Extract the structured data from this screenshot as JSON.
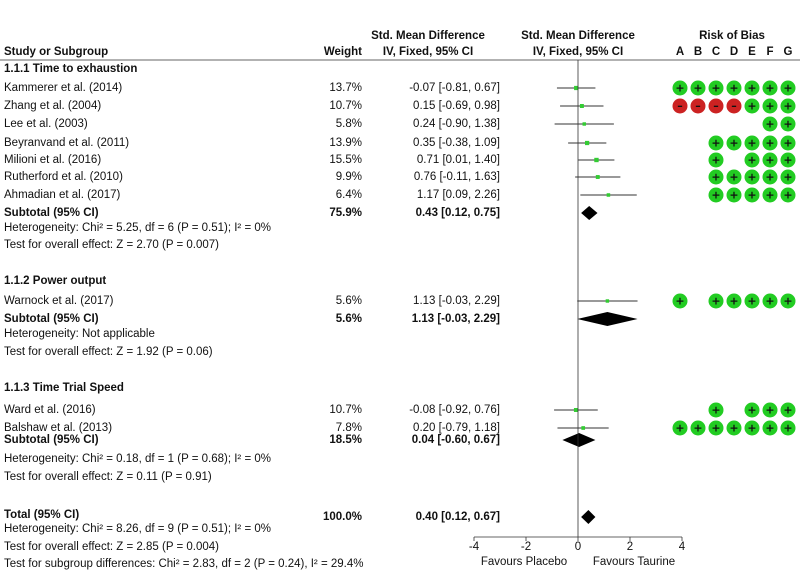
{
  "header": {
    "col_study": "Study or Subgroup",
    "col_weight": "Weight",
    "col_smd_top": "Std. Mean Difference",
    "col_smd_bottom": "IV, Fixed, 95% CI",
    "col_plot_top": "Std. Mean Difference",
    "col_plot_bottom": "IV, Fixed, 95% CI",
    "col_rob_top": "Risk of Bias",
    "rob_letters": [
      "A",
      "B",
      "C",
      "D",
      "E",
      "F",
      "G"
    ]
  },
  "groups": [
    {
      "title": "1.1.1 Time to exhaustion",
      "studies": [
        {
          "name": "Kammerer et al. (2014)",
          "weight": "13.7%",
          "ci_text": "-0.07 [-0.81, 0.67]",
          "est": -0.07,
          "lo": -0.81,
          "hi": 0.67,
          "rob": [
            "+",
            "+",
            "+",
            "+",
            "+",
            "+",
            "+"
          ]
        },
        {
          "name": "Zhang et al. (2004)",
          "weight": "10.7%",
          "ci_text": "0.15 [-0.69, 0.98]",
          "est": 0.15,
          "lo": -0.69,
          "hi": 0.98,
          "rob": [
            "-",
            "-",
            "-",
            "-",
            "+",
            "+",
            "+"
          ]
        },
        {
          "name": "Lee et al. (2003)",
          "weight": "5.8%",
          "ci_text": "0.24 [-0.90, 1.38]",
          "est": 0.24,
          "lo": -0.9,
          "hi": 1.38,
          "rob": [
            "",
            "",
            "",
            "",
            "",
            "+",
            "+"
          ]
        },
        {
          "name": "Beyranvand et al. (2011)",
          "weight": "13.9%",
          "ci_text": "0.35 [-0.38, 1.09]",
          "est": 0.35,
          "lo": -0.38,
          "hi": 1.09,
          "rob": [
            "",
            "",
            "+",
            "+",
            "+",
            "+",
            "+"
          ]
        },
        {
          "name": "Milioni et al. (2016)",
          "weight": "15.5%",
          "ci_text": "0.71 [0.01, 1.40]",
          "est": 0.71,
          "lo": 0.01,
          "hi": 1.4,
          "rob": [
            "",
            "",
            "+",
            "",
            "+",
            "+",
            "+"
          ]
        },
        {
          "name": "Rutherford et al. (2010)",
          "weight": "9.9%",
          "ci_text": "0.76 [-0.11, 1.63]",
          "est": 0.76,
          "lo": -0.11,
          "hi": 1.63,
          "rob": [
            "",
            "",
            "+",
            "+",
            "+",
            "+",
            "+"
          ]
        },
        {
          "name": "Ahmadian et al. (2017)",
          "weight": "6.4%",
          "ci_text": "1.17 [0.09, 2.26]",
          "est": 1.17,
          "lo": 0.09,
          "hi": 2.26,
          "rob": [
            "",
            "",
            "+",
            "+",
            "+",
            "+",
            "+"
          ]
        }
      ],
      "subtotal": {
        "label": "Subtotal (95% CI)",
        "weight": "75.9%",
        "ci_text": "0.43 [0.12, 0.75]",
        "est": 0.43,
        "lo": 0.12,
        "hi": 0.75
      },
      "heterogeneity": "Heterogeneity: Chi² = 5.25, df = 6 (P = 0.51); I² = 0%",
      "overall_effect": "Test for overall effect: Z = 2.70 (P = 0.007)"
    },
    {
      "title": "1.1.2 Power output",
      "studies": [
        {
          "name": "Warnock et al. (2017)",
          "weight": "5.6%",
          "ci_text": "1.13 [-0.03, 2.29]",
          "est": 1.13,
          "lo": -0.03,
          "hi": 2.29,
          "rob": [
            "+",
            "",
            "+",
            "+",
            "+",
            "+",
            "+"
          ]
        }
      ],
      "subtotal": {
        "label": "Subtotal (95% CI)",
        "weight": "5.6%",
        "ci_text": "1.13 [-0.03, 2.29]",
        "est": 1.13,
        "lo": -0.03,
        "hi": 2.29
      },
      "heterogeneity": "Heterogeneity: Not applicable",
      "overall_effect": "Test for overall effect: Z = 1.92 (P = 0.06)"
    },
    {
      "title": "1.1.3 Time Trial Speed",
      "studies": [
        {
          "name": "Ward et al. (2016)",
          "weight": "10.7%",
          "ci_text": "-0.08 [-0.92, 0.76]",
          "est": -0.08,
          "lo": -0.92,
          "hi": 0.76,
          "rob": [
            "",
            "",
            "+",
            "",
            "+",
            "+",
            "+"
          ]
        },
        {
          "name": "Balshaw et al. (2013)",
          "weight": "7.8%",
          "ci_text": "0.20 [-0.79, 1.18]",
          "est": 0.2,
          "lo": -0.79,
          "hi": 1.18,
          "rob": [
            "+",
            "+",
            "+",
            "+",
            "+",
            "+",
            "+"
          ]
        }
      ],
      "subtotal": {
        "label": "Subtotal (95% CI)",
        "weight": "18.5%",
        "ci_text": "0.04 [-0.60, 0.67]",
        "est": 0.04,
        "lo": -0.6,
        "hi": 0.67
      },
      "heterogeneity": "Heterogeneity: Chi² = 0.18, df = 1 (P = 0.68); I² = 0%",
      "overall_effect": "Test for overall effect: Z = 0.11 (P = 0.91)"
    }
  ],
  "total": {
    "label": "Total (95% CI)",
    "weight": "100.0%",
    "ci_text": "0.40 [0.12, 0.67]",
    "est": 0.4,
    "lo": 0.12,
    "hi": 0.67,
    "heterogeneity": "Heterogeneity: Chi² = 8.26, df = 9 (P = 0.51); I² = 0%",
    "overall_effect": "Test for overall effect: Z = 2.85 (P = 0.004)",
    "subgroup_diff": "Test for subgroup differences: Chi² = 2.83, df = 2 (P = 0.24), I² = 29.4%"
  },
  "axis": {
    "ticks": [
      "-4",
      "-2",
      "0",
      "2",
      "4"
    ],
    "favours_left": "Favours Placebo",
    "favours_right": "Favours Taurine"
  },
  "chart_data": {
    "type": "forest",
    "xlim": [
      -4,
      4
    ],
    "xticks": [
      -4,
      -2,
      0,
      2,
      4
    ],
    "xlabel_left": "Favours Placebo",
    "xlabel_right": "Favours Taurine",
    "series": [
      {
        "name": "Kammerer et al. (2014)",
        "est": -0.07,
        "lo": -0.81,
        "hi": 0.67,
        "weight": 13.7
      },
      {
        "name": "Zhang et al. (2004)",
        "est": 0.15,
        "lo": -0.69,
        "hi": 0.98,
        "weight": 10.7
      },
      {
        "name": "Lee et al. (2003)",
        "est": 0.24,
        "lo": -0.9,
        "hi": 1.38,
        "weight": 5.8
      },
      {
        "name": "Beyranvand et al. (2011)",
        "est": 0.35,
        "lo": -0.38,
        "hi": 1.09,
        "weight": 13.9
      },
      {
        "name": "Milioni et al. (2016)",
        "est": 0.71,
        "lo": 0.01,
        "hi": 1.4,
        "weight": 15.5
      },
      {
        "name": "Rutherford et al. (2010)",
        "est": 0.76,
        "lo": -0.11,
        "hi": 1.63,
        "weight": 9.9
      },
      {
        "name": "Ahmadian et al. (2017)",
        "est": 1.17,
        "lo": 0.09,
        "hi": 2.26,
        "weight": 6.4
      },
      {
        "name": "Warnock et al. (2017)",
        "est": 1.13,
        "lo": -0.03,
        "hi": 2.29,
        "weight": 5.6
      },
      {
        "name": "Ward et al. (2016)",
        "est": -0.08,
        "lo": -0.92,
        "hi": 0.76,
        "weight": 10.7
      },
      {
        "name": "Balshaw et al. (2013)",
        "est": 0.2,
        "lo": -0.79,
        "hi": 1.18,
        "weight": 7.8
      }
    ]
  },
  "colors": {
    "low_risk": "#22cc22",
    "high_risk": "#cc2222",
    "marker": "#33cc33",
    "ci_line": "#333333"
  }
}
